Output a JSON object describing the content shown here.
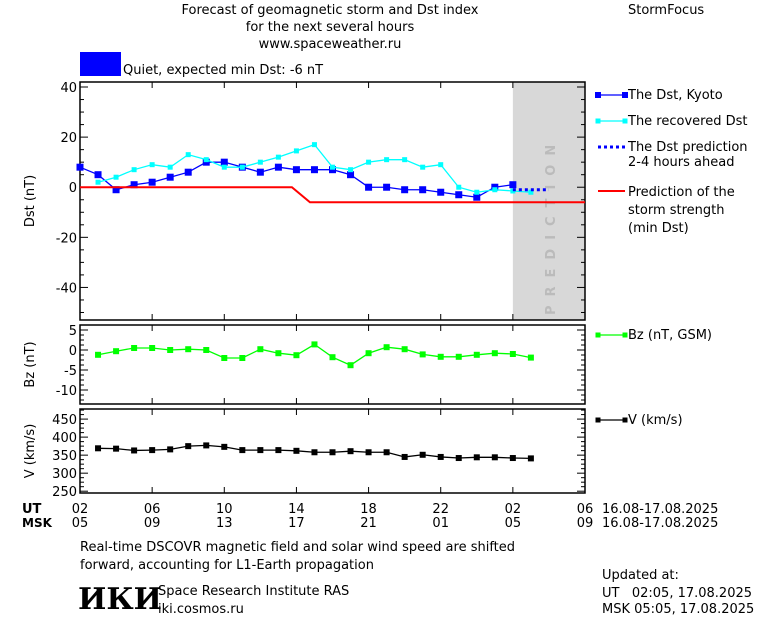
{
  "header": {
    "title_lines": [
      "Forecast of geomagnetic storm and Dst index",
      "for the next several hours",
      "www.spaceweather.ru"
    ],
    "brand": "StormFocus",
    "status": "Quiet, expected min Dst: -6 nT",
    "status_color": "#0000ff"
  },
  "chart_data": [
    {
      "type": "line",
      "panel": "Dst",
      "ylabel": "Dst (nT)",
      "ylim": [
        -53,
        42
      ],
      "yticks": [
        40,
        20,
        0,
        -20,
        -40
      ],
      "x_unit": "hours from 02 UT 16.08",
      "xlim": [
        0,
        28
      ],
      "prediction_label": "PREDICTION",
      "prediction_from_hour": 24,
      "series": [
        {
          "name": "The Dst, Kyoto",
          "color": "#0000ff",
          "x": [
            0,
            1,
            2,
            3,
            4,
            5,
            6,
            7,
            8,
            9,
            10,
            11,
            12,
            13,
            14,
            15,
            16,
            17,
            18,
            19,
            20,
            21,
            22,
            23,
            24
          ],
          "values": [
            8,
            5,
            -1,
            1,
            2,
            4,
            6,
            10,
            10,
            8,
            6,
            8,
            7,
            7,
            7,
            5,
            0,
            0,
            -1,
            -1,
            -2,
            -3,
            -4,
            0,
            1
          ]
        },
        {
          "name": "The recovered Dst",
          "color": "#00ffff",
          "x": [
            1,
            2,
            3,
            4,
            5,
            6,
            7,
            8,
            9,
            10,
            11,
            12,
            13,
            14,
            15,
            16,
            17,
            18,
            19,
            20,
            21,
            22,
            23,
            24,
            25
          ],
          "values": [
            2,
            4,
            7,
            9,
            8,
            13,
            11,
            8,
            8,
            10,
            12,
            14.5,
            17,
            8,
            7,
            10,
            11,
            11,
            8,
            9,
            0,
            -2,
            -1,
            -1.5,
            -2
          ]
        },
        {
          "name": "The Dst prediction 2-4 hours ahead",
          "color": "#0000ff",
          "x": [
            24,
            25,
            26
          ],
          "values": [
            -1,
            -1,
            -1
          ]
        },
        {
          "name": "Prediction of the storm strength (min Dst)",
          "color": "#ff0000",
          "x": [
            0,
            11.75,
            12.75,
            28
          ],
          "values": [
            0,
            0,
            -6,
            -6
          ]
        }
      ]
    },
    {
      "type": "line",
      "panel": "Bz",
      "ylabel": "Bz (nT)",
      "ylim": [
        -13.5,
        6.25
      ],
      "yticks": [
        5,
        0,
        -5,
        -10
      ],
      "xlim": [
        0,
        28
      ],
      "series": [
        {
          "name": "Bz (nT, GSM)",
          "color": "#00ff00",
          "x": [
            1,
            2,
            3,
            4,
            5,
            6,
            7,
            8,
            9,
            10,
            11,
            12,
            13,
            14,
            15,
            16,
            17,
            18,
            19,
            20,
            21,
            22,
            23,
            24,
            25
          ],
          "values": [
            -1.2,
            -0.3,
            0.5,
            0.5,
            0,
            0.2,
            0,
            -2,
            -2,
            0.2,
            -0.8,
            -1.3,
            1.4,
            -1.8,
            -3.8,
            -0.8,
            0.7,
            0.2,
            -1.1,
            -1.7,
            -1.7,
            -1.2,
            -0.8,
            -1,
            -1.9
          ]
        }
      ]
    },
    {
      "type": "line",
      "panel": "V",
      "ylabel": "V (km/s)",
      "ylim": [
        245,
        478
      ],
      "yticks": [
        450,
        400,
        350,
        300,
        250
      ],
      "xlim": [
        0,
        28
      ],
      "series": [
        {
          "name": "V (km/s)",
          "color": "#000000",
          "x": [
            1,
            2,
            3,
            4,
            5,
            6,
            7,
            8,
            9,
            10,
            11,
            12,
            13,
            14,
            15,
            16,
            17,
            18,
            19,
            20,
            21,
            22,
            23,
            24,
            25
          ],
          "values": [
            369,
            368,
            363,
            364,
            366,
            375,
            377,
            373,
            364,
            364,
            364,
            362,
            358,
            358,
            361,
            358,
            358,
            345,
            351,
            345,
            342,
            344,
            344,
            342,
            341
          ]
        }
      ]
    }
  ],
  "xaxis": {
    "ut_label": "UT",
    "msk_label": "MSK",
    "ut_ticks": [
      "02",
      "06",
      "10",
      "14",
      "18",
      "22",
      "02",
      "06"
    ],
    "msk_ticks": [
      "05",
      "09",
      "13",
      "17",
      "21",
      "01",
      "05",
      "09"
    ],
    "ut_dates": "16.08-17.08.2025",
    "msk_dates": "16.08-17.08.2025"
  },
  "footer": {
    "note_lines": [
      "Real-time DSCOVR magnetic field and solar wind speed are shifted",
      "forward, accounting for L1-Earth propagation"
    ],
    "logo": "ИКИ",
    "institute": "Space Research Institute RAS",
    "site": "iki.cosmos.ru",
    "updated_label": "Updated at:",
    "updated_ut": "UT   02:05, 17.08.2025",
    "updated_msk": "MSK 05:05, 17.08.2025"
  }
}
